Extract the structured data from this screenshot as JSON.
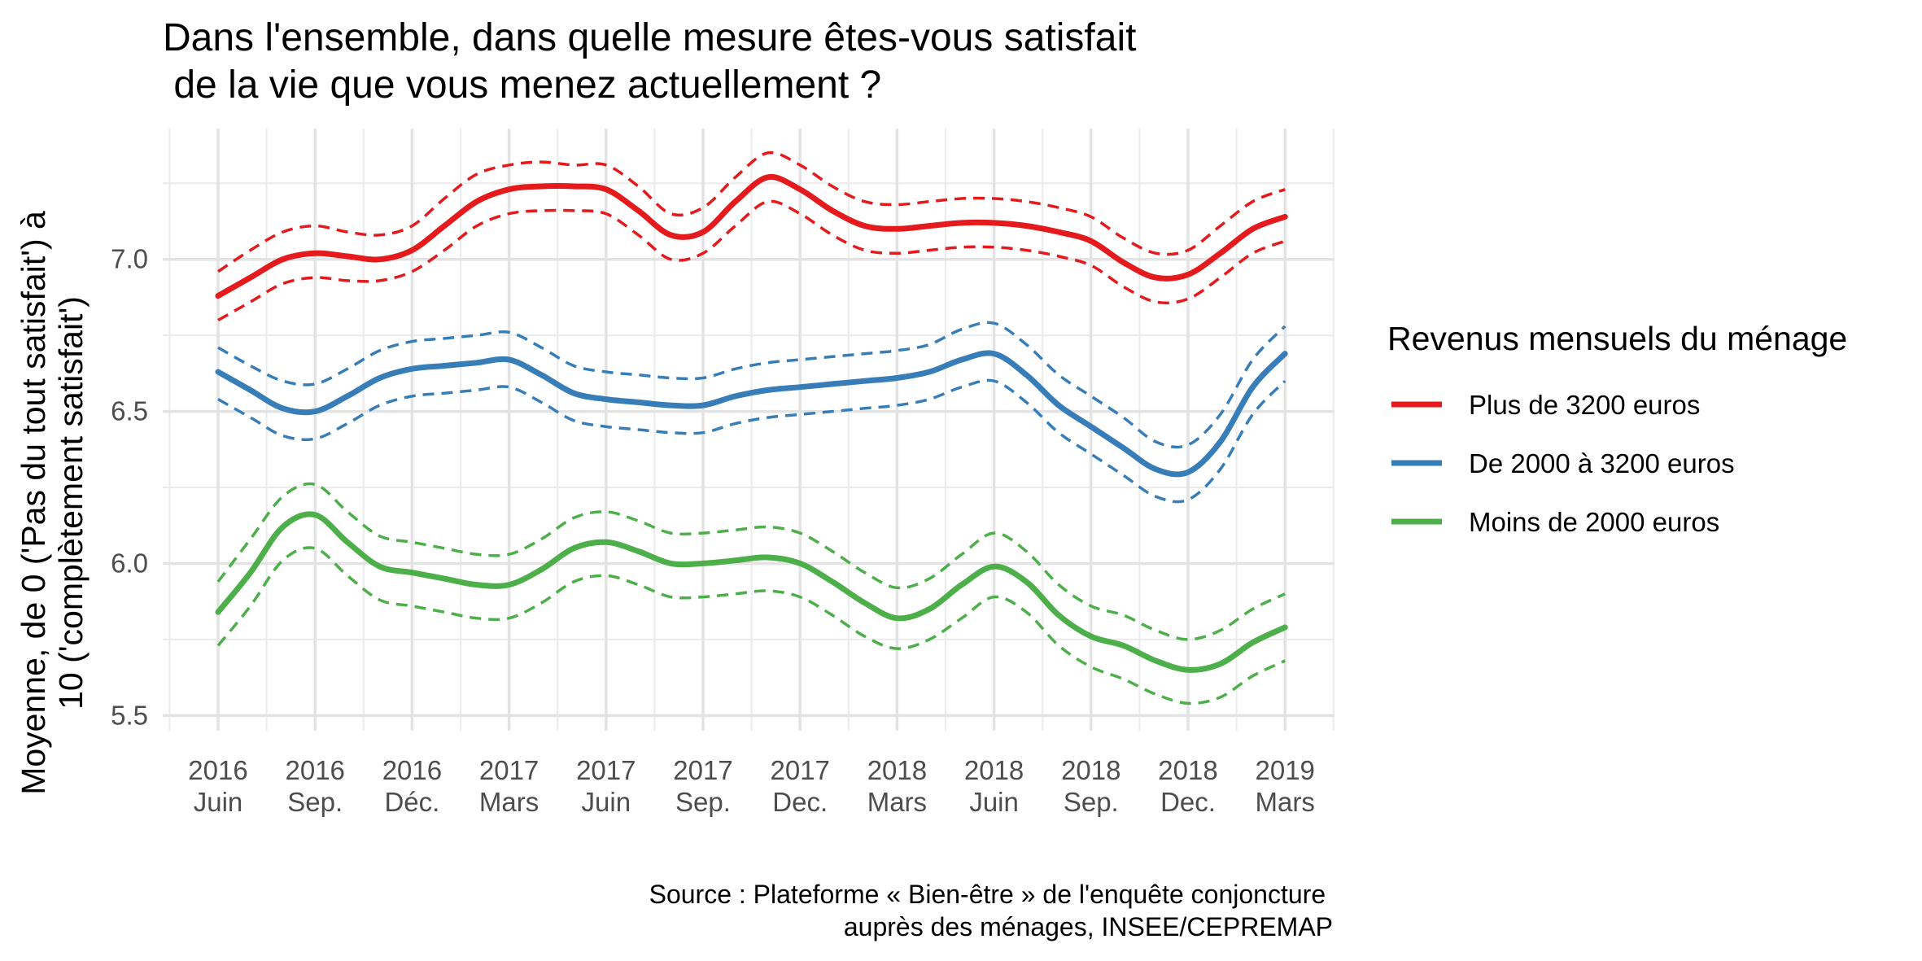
{
  "chart_data": {
    "type": "line",
    "title_lines": [
      "Dans l'ensemble, dans quelle mesure êtes-vous satisfait",
      " de la vie que vous menez actuellement ?"
    ],
    "ylabel_lines": [
      "Moyenne, de 0 ('Pas du tout satisfait') à",
      "10 ('complètement satisfait')"
    ],
    "xlabel": "",
    "ylim": [
      5.45,
      7.43
    ],
    "y_ticks": [
      "5.5",
      "6.0",
      "6.5",
      "7.0"
    ],
    "y_tick_values": [
      5.5,
      6.0,
      6.5,
      7.0
    ],
    "x_ticks": [
      {
        "year": "2016",
        "month": "Juin"
      },
      {
        "year": "2016",
        "month": "Sep."
      },
      {
        "year": "2016",
        "month": "Déc."
      },
      {
        "year": "2017",
        "month": "Mars"
      },
      {
        "year": "2017",
        "month": "Juin"
      },
      {
        "year": "2017",
        "month": "Sep."
      },
      {
        "year": "2017",
        "month": "Dec."
      },
      {
        "year": "2018",
        "month": "Mars"
      },
      {
        "year": "2018",
        "month": "Juin"
      },
      {
        "year": "2018",
        "month": "Sep."
      },
      {
        "year": "2018",
        "month": "Dec."
      },
      {
        "year": "2019",
        "month": "Mars"
      }
    ],
    "grid": true,
    "legend_title": "Revenus mensuels du ménage",
    "legend_position": "right",
    "confidence_band_style": "dashed",
    "x": [
      "2016-06",
      "2016-07",
      "2016-08",
      "2016-09",
      "2016-10",
      "2016-11",
      "2016-12",
      "2017-01",
      "2017-02",
      "2017-03",
      "2017-04",
      "2017-05",
      "2017-06",
      "2017-07",
      "2017-08",
      "2017-09",
      "2017-10",
      "2017-11",
      "2017-12",
      "2018-01",
      "2018-02",
      "2018-03",
      "2018-04",
      "2018-05",
      "2018-06",
      "2018-07",
      "2018-08",
      "2018-09",
      "2018-10",
      "2018-11",
      "2018-12",
      "2019-01",
      "2019-02",
      "2019-03"
    ],
    "series": [
      {
        "name": "Plus de 3200 euros",
        "color": "#e41a1c",
        "values": [
          6.88,
          6.94,
          7.0,
          7.02,
          7.01,
          7.0,
          7.03,
          7.11,
          7.19,
          7.23,
          7.24,
          7.24,
          7.23,
          7.16,
          7.08,
          7.09,
          7.19,
          7.27,
          7.23,
          7.16,
          7.11,
          7.1,
          7.11,
          7.12,
          7.12,
          7.11,
          7.09,
          7.06,
          6.99,
          6.94,
          6.95,
          7.02,
          7.1,
          7.14
        ],
        "upper": [
          6.96,
          7.03,
          7.09,
          7.11,
          7.09,
          7.08,
          7.11,
          7.2,
          7.28,
          7.31,
          7.32,
          7.31,
          7.31,
          7.24,
          7.15,
          7.17,
          7.27,
          7.35,
          7.31,
          7.24,
          7.19,
          7.18,
          7.19,
          7.2,
          7.2,
          7.19,
          7.17,
          7.14,
          7.07,
          7.02,
          7.03,
          7.11,
          7.19,
          7.23
        ],
        "lower": [
          6.8,
          6.86,
          6.92,
          6.94,
          6.93,
          6.93,
          6.96,
          7.03,
          7.11,
          7.15,
          7.16,
          7.16,
          7.15,
          7.08,
          7.0,
          7.02,
          7.11,
          7.19,
          7.15,
          7.08,
          7.03,
          7.02,
          7.03,
          7.04,
          7.04,
          7.03,
          7.01,
          6.98,
          6.91,
          6.86,
          6.87,
          6.94,
          7.02,
          7.06
        ]
      },
      {
        "name": "De 2000 à 3200 euros",
        "color": "#377eb8",
        "values": [
          6.63,
          6.57,
          6.51,
          6.5,
          6.55,
          6.61,
          6.64,
          6.65,
          6.66,
          6.67,
          6.62,
          6.56,
          6.54,
          6.53,
          6.52,
          6.52,
          6.55,
          6.57,
          6.58,
          6.59,
          6.6,
          6.61,
          6.63,
          6.67,
          6.69,
          6.62,
          6.52,
          6.45,
          6.38,
          6.31,
          6.3,
          6.4,
          6.58,
          6.69
        ],
        "upper": [
          6.71,
          6.65,
          6.6,
          6.59,
          6.64,
          6.7,
          6.73,
          6.74,
          6.75,
          6.76,
          6.71,
          6.65,
          6.63,
          6.62,
          6.61,
          6.61,
          6.64,
          6.66,
          6.67,
          6.68,
          6.69,
          6.7,
          6.72,
          6.77,
          6.79,
          6.72,
          6.62,
          6.55,
          6.48,
          6.4,
          6.39,
          6.49,
          6.67,
          6.78
        ],
        "lower": [
          6.54,
          6.48,
          6.42,
          6.41,
          6.46,
          6.52,
          6.55,
          6.56,
          6.57,
          6.58,
          6.53,
          6.47,
          6.45,
          6.44,
          6.43,
          6.43,
          6.46,
          6.48,
          6.49,
          6.5,
          6.51,
          6.52,
          6.54,
          6.58,
          6.6,
          6.53,
          6.43,
          6.36,
          6.29,
          6.22,
          6.21,
          6.31,
          6.49,
          6.6
        ]
      },
      {
        "name": "Moins de 2000 euros",
        "color": "#4daf4a",
        "values": [
          5.84,
          5.97,
          6.12,
          6.16,
          6.07,
          5.99,
          5.97,
          5.95,
          5.93,
          5.93,
          5.98,
          6.05,
          6.07,
          6.04,
          6.0,
          6.0,
          6.01,
          6.02,
          6.0,
          5.94,
          5.87,
          5.82,
          5.85,
          5.93,
          5.99,
          5.94,
          5.83,
          5.76,
          5.73,
          5.68,
          5.65,
          5.67,
          5.74,
          5.79
        ],
        "upper": [
          5.94,
          6.08,
          6.22,
          6.26,
          6.17,
          6.09,
          6.07,
          6.05,
          6.03,
          6.03,
          6.08,
          6.15,
          6.17,
          6.14,
          6.1,
          6.1,
          6.11,
          6.12,
          6.1,
          6.04,
          5.97,
          5.92,
          5.95,
          6.03,
          6.1,
          6.04,
          5.93,
          5.86,
          5.83,
          5.78,
          5.75,
          5.78,
          5.85,
          5.9
        ],
        "lower": [
          5.73,
          5.86,
          6.01,
          6.05,
          5.96,
          5.88,
          5.86,
          5.84,
          5.82,
          5.82,
          5.87,
          5.94,
          5.96,
          5.93,
          5.89,
          5.89,
          5.9,
          5.91,
          5.89,
          5.83,
          5.76,
          5.72,
          5.75,
          5.82,
          5.89,
          5.84,
          5.73,
          5.66,
          5.62,
          5.57,
          5.54,
          5.56,
          5.63,
          5.68
        ]
      }
    ],
    "caption_lines": [
      "Source : Plateforme « Bien-être » de l'enquête conjoncture ",
      "auprès des ménages, INSEE/CEPREMAP"
    ]
  }
}
